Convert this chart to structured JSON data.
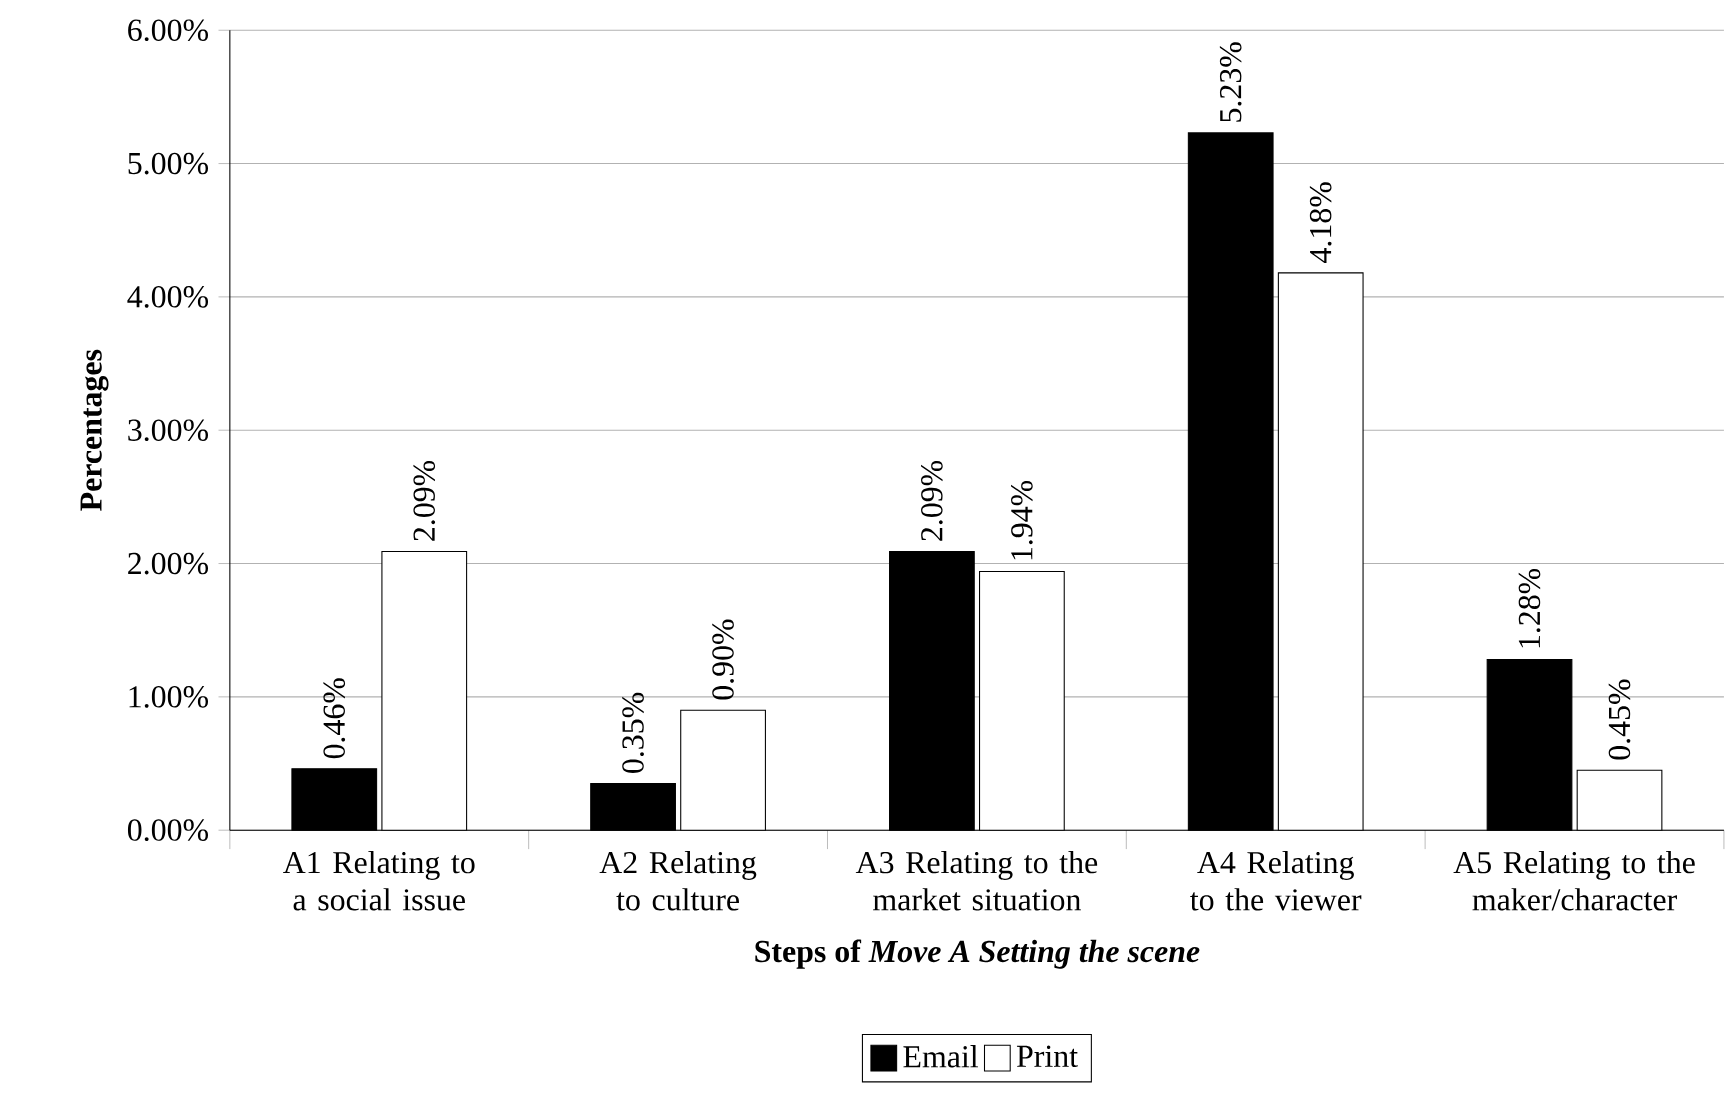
{
  "chart_data": {
    "type": "bar",
    "xlabel": "Steps of *Move A Setting the scene*",
    "ylabel": "Percentages",
    "categories": [
      "A1 Relating to a social issue",
      "A2 Relating to culture",
      "A3 Relating to the market situation",
      "A4 Relating to the viewer",
      "A5 Relating to the maker/character"
    ],
    "series": [
      {
        "name": "Email",
        "color": "#000000",
        "values": [
          0.46,
          0.35,
          2.09,
          5.23,
          1.28
        ],
        "value_labels": [
          "0.46%",
          "0.35%",
          "2.09%",
          "5.23%",
          "1.28%"
        ]
      },
      {
        "name": "Print",
        "color": "#ffffff",
        "values": [
          2.09,
          0.9,
          1.94,
          4.18,
          0.45
        ],
        "value_labels": [
          "2.09%",
          "0.90%",
          "1.94%",
          "4.18%",
          "0.45%"
        ]
      }
    ],
    "ylim": [
      0,
      6
    ],
    "yticks": [
      {
        "value": 0,
        "label": "0.00%"
      },
      {
        "value": 1,
        "label": "1.00%"
      },
      {
        "value": 2,
        "label": "2.00%"
      },
      {
        "value": 3,
        "label": "3.00%"
      },
      {
        "value": 4,
        "label": "4.00%"
      },
      {
        "value": 5,
        "label": "5.00%"
      },
      {
        "value": 6,
        "label": "6.00%"
      }
    ],
    "grid": "y",
    "legend": "bottom"
  }
}
